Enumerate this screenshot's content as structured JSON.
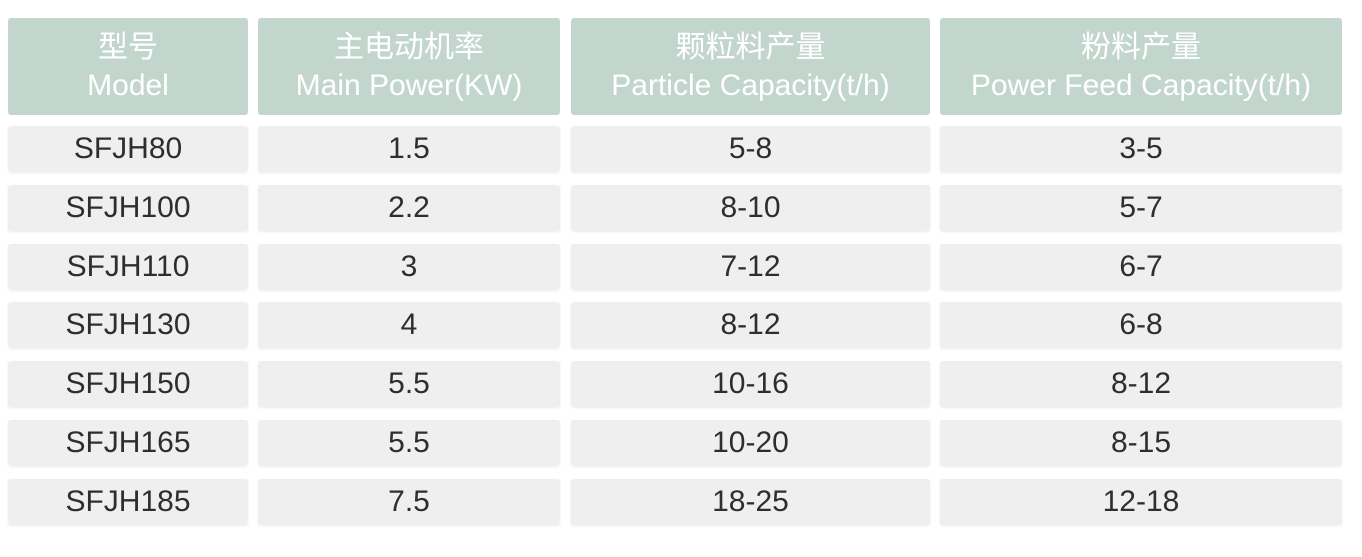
{
  "table": {
    "header": [
      {
        "zh": "型号",
        "en": "Model"
      },
      {
        "zh": "主电动机率",
        "en": "Main Power(KW)"
      },
      {
        "zh": "颗粒料产量",
        "en": "Particle Capacity(t/h)"
      },
      {
        "zh": "粉料产量",
        "en": "Power Feed Capacity(t/h)"
      }
    ],
    "rows": [
      [
        "SFJH80",
        "1.5",
        "5-8",
        "3-5"
      ],
      [
        "SFJH100",
        "2.2",
        "8-10",
        "5-7"
      ],
      [
        "SFJH110",
        "3",
        "7-12",
        "6-7"
      ],
      [
        "SFJH130",
        "4",
        "8-12",
        "6-8"
      ],
      [
        "SFJH150",
        "5.5",
        "10-16",
        "8-12"
      ],
      [
        "SFJH165",
        "5.5",
        "10-20",
        "8-15"
      ],
      [
        "SFJH185",
        "7.5",
        "18-25",
        "12-18"
      ]
    ]
  }
}
